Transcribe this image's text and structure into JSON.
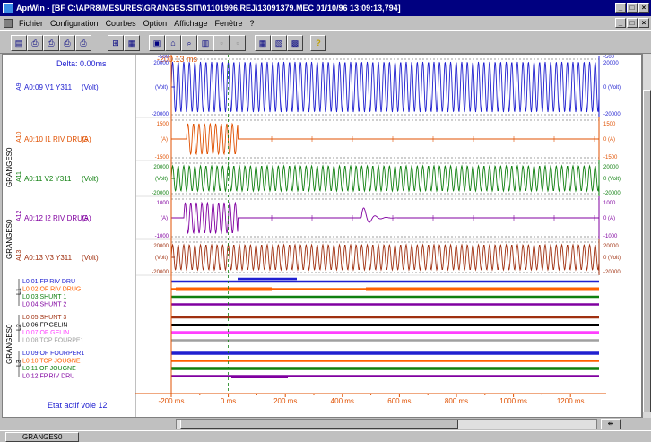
{
  "window": {
    "title": "AprWin - [BF C:\\APR8\\MESURES\\GRANGES.SIT\\01101996.REJ\\13091379.MEC 01/10/96 13:09:13,794]"
  },
  "menu": [
    "Fichier",
    "Configuration",
    "Courbes",
    "Option",
    "Affichage",
    "Fenêtre",
    "?"
  ],
  "toolbar": {
    "icons": [
      "chart-icon",
      "print-icon",
      "print-all-icon",
      "print-preview-icon",
      "print-setup-icon",
      "zoom-fit-icon",
      "table-icon",
      "cursor-icon",
      "zoom-icon",
      "grid-icon",
      "zoom-in-icon",
      "zoom-out-icon",
      "layout-h-icon",
      "layout-v-icon",
      "layout-stack-icon",
      "help-icon"
    ],
    "help_label": "?"
  },
  "panel": {
    "delta": "Delta: 0.00ms",
    "cursor_time": "-200.13 ms",
    "status": "Etat actif voie 12"
  },
  "groups": {
    "g1": "GRANGES0",
    "g2": "GRANGES0",
    "g3": "GRANGES0"
  },
  "analog_channels": [
    {
      "id": "A9",
      "label": "A0:09 V1 Y311",
      "unit": "(Volt)",
      "color": "#2020d0",
      "scale_top": "20000",
      "scale_bot": "-20000",
      "axis_unit": "(Volt)",
      "right_top": "20000",
      "right_bot": "-20000",
      "right_unit": "0 (Volt)",
      "extra_top": "-500",
      "extra_right": "-500"
    },
    {
      "id": "A10",
      "label": "A0:10 I1 RIV DRUG",
      "unit": "(A)",
      "color": "#e05000",
      "scale_top": "1500",
      "scale_bot": "-1500",
      "axis_unit": "(A)",
      "right_top": "1500",
      "right_bot": "-1500",
      "right_unit": "0 (A)"
    },
    {
      "id": "A11",
      "label": "A0:11 V2 Y311",
      "unit": "(Volt)",
      "color": "#108010",
      "scale_top": "20000",
      "scale_bot": "-20000",
      "axis_unit": "(Volt)",
      "right_top": "20000",
      "right_bot": "-20000",
      "right_unit": "0 (Volt)"
    },
    {
      "id": "A12",
      "label": "A0:12 I2 RIV DRUG",
      "unit": "(A)",
      "color": "#8000a0",
      "scale_top": "1000",
      "scale_bot": "-1000",
      "axis_unit": "(A)",
      "right_top": "1000",
      "right_bot": "-1000",
      "right_unit": "0 (A)"
    },
    {
      "id": "A13",
      "label": "A0:13 V3 Y311",
      "unit": "(Volt)",
      "color": "#a03010",
      "scale_top": "20000",
      "scale_bot": "-20000",
      "axis_unit": "(Volt)",
      "right_top": "20000",
      "right_bot": "-20000",
      "right_unit": "0 (Volt)"
    }
  ],
  "logic_groups": [
    {
      "id": "L1",
      "channels": [
        {
          "label": "L0:01 FP RIV DRU",
          "color": "#2020d0"
        },
        {
          "label": "L0:02 OF RIV DRUG",
          "color": "#ff6000"
        },
        {
          "label": "L0:03 SHUNT 1",
          "color": "#108010"
        },
        {
          "label": "L0:04 SHUNT 2",
          "color": "#8000a0"
        }
      ]
    },
    {
      "id": "L2",
      "channels": [
        {
          "label": "L0:05 SHUNT 3",
          "color": "#a03010"
        },
        {
          "label": "L0:06 FP.GELIN",
          "color": "#000000"
        },
        {
          "label": "L0:07 OF GELIN",
          "color": "#ff40ff"
        },
        {
          "label": "L0:08 TOP FOURPE1",
          "color": "#a0a0a0"
        }
      ]
    },
    {
      "id": "L3",
      "channels": [
        {
          "label": "L0:09 OF FOURPER1",
          "color": "#2020d0"
        },
        {
          "label": "L0:10 TOP JOUGNE",
          "color": "#ff6000"
        },
        {
          "label": "L0:11 OF JOUGNE",
          "color": "#108010"
        },
        {
          "label": "L0:12 FP.RIV DRU",
          "color": "#8000a0"
        }
      ]
    }
  ],
  "time_axis": {
    "ticks": [
      "-200 ms",
      "0 ms",
      "200 ms",
      "400 ms",
      "600 ms",
      "800 ms",
      "1000 ms",
      "1200 ms"
    ],
    "values": [
      -200,
      0,
      200,
      400,
      600,
      800,
      1000,
      1200
    ],
    "range": [
      -200,
      1300
    ]
  },
  "statusbar": {
    "tab": "GRANGES0"
  }
}
